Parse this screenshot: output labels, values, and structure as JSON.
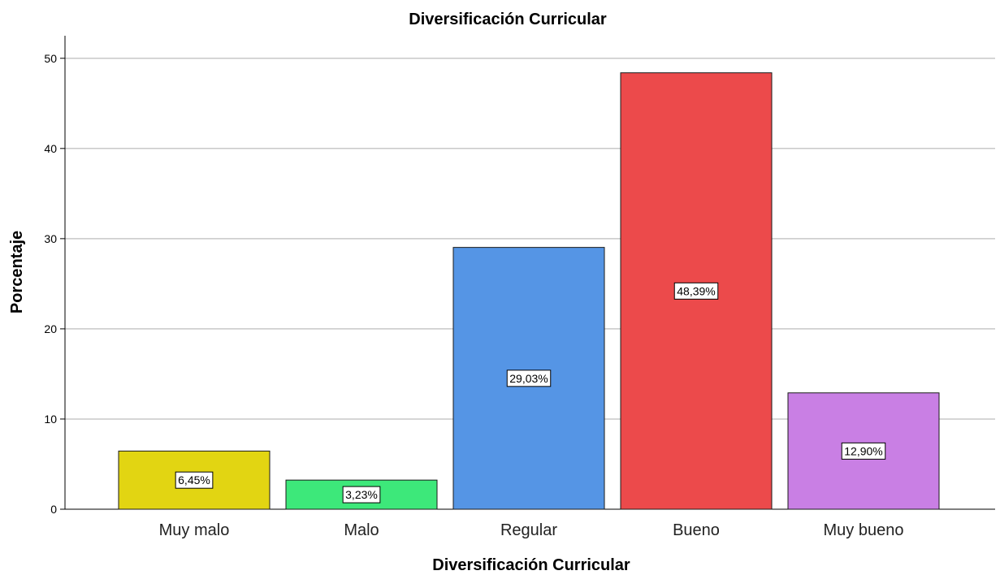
{
  "chart_data": {
    "type": "bar",
    "title": "Diversificación Curricular",
    "xlabel": "Diversificación Curricular",
    "ylabel": "Porcentaje",
    "categories": [
      "Muy malo",
      "Malo",
      "Regular",
      "Bueno",
      "Muy bueno"
    ],
    "values": [
      6.45,
      3.23,
      29.03,
      48.39,
      12.9
    ],
    "data_labels": [
      "6,45%",
      "3,23%",
      "29,03%",
      "48,39%",
      "12,90%"
    ],
    "colors": [
      "#e2d512",
      "#3de87a",
      "#5595e5",
      "#ec4a4b",
      "#c97fe4"
    ],
    "ylim": [
      0,
      52.5
    ],
    "yticks": [
      0,
      10,
      20,
      30,
      40,
      50
    ],
    "grid": true,
    "legend": "none"
  }
}
